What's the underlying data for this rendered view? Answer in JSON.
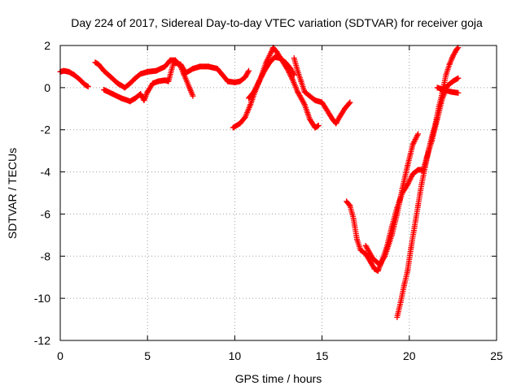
{
  "chart_data": {
    "type": "scatter",
    "title": "Day 224 of 2017, Sidereal Day-to-day VTEC variation (SDTVAR) for receiver goja",
    "xlabel": "GPS time / hours",
    "ylabel": "SDTVAR / TECUs",
    "xlim": [
      0,
      25
    ],
    "ylim": [
      -12,
      2
    ],
    "xticks": [
      0,
      5,
      10,
      15,
      20,
      25
    ],
    "yticks": [
      -12,
      -10,
      -8,
      -6,
      -4,
      -2,
      0,
      2
    ],
    "grid": true,
    "marker": "plus",
    "color": "#ff0000",
    "segments": [
      [
        [
          0,
          0.75
        ],
        [
          0.2,
          0.8
        ],
        [
          0.5,
          0.75
        ],
        [
          0.8,
          0.6
        ],
        [
          1.1,
          0.4
        ],
        [
          1.4,
          0.15
        ],
        [
          1.6,
          0.05
        ]
      ],
      [
        [
          2.0,
          1.2
        ],
        [
          2.2,
          1.1
        ],
        [
          2.5,
          0.8
        ],
        [
          2.9,
          0.5
        ],
        [
          3.3,
          0.2
        ],
        [
          3.7,
          0.0
        ],
        [
          4.0,
          0.2
        ],
        [
          4.3,
          0.45
        ],
        [
          4.6,
          0.65
        ],
        [
          5.0,
          0.75
        ],
        [
          5.5,
          0.8
        ],
        [
          6.0,
          1.0
        ],
        [
          6.3,
          1.3
        ],
        [
          6.6,
          1.3
        ],
        [
          6.9,
          1.0
        ],
        [
          7.1,
          0.6
        ],
        [
          7.4,
          0.0
        ],
        [
          7.6,
          -0.4
        ]
      ],
      [
        [
          2.5,
          -0.1
        ],
        [
          3.0,
          -0.3
        ],
        [
          3.5,
          -0.5
        ],
        [
          4.0,
          -0.65
        ],
        [
          4.3,
          -0.5
        ],
        [
          4.6,
          -0.3
        ],
        [
          4.8,
          -0.6
        ],
        [
          5.0,
          -0.2
        ],
        [
          5.3,
          0.2
        ],
        [
          5.6,
          0.3
        ],
        [
          6.0,
          0.35
        ],
        [
          6.2,
          0.3
        ],
        [
          6.5,
          1.2
        ],
        [
          6.9,
          1.1
        ],
        [
          7.2,
          0.7
        ],
        [
          7.6,
          0.9
        ],
        [
          8.0,
          1.0
        ],
        [
          8.5,
          1.0
        ],
        [
          9.0,
          0.9
        ],
        [
          9.3,
          0.6
        ],
        [
          9.6,
          0.3
        ],
        [
          10.0,
          0.25
        ],
        [
          10.3,
          0.3
        ],
        [
          10.6,
          0.5
        ],
        [
          10.8,
          0.8
        ]
      ],
      [
        [
          9.9,
          -1.9
        ],
        [
          10.3,
          -1.7
        ],
        [
          10.6,
          -1.4
        ],
        [
          10.9,
          -0.8
        ],
        [
          11.2,
          -0.1
        ],
        [
          11.5,
          0.5
        ],
        [
          11.8,
          1.2
        ],
        [
          12.1,
          1.7
        ],
        [
          12.2,
          1.9
        ],
        [
          12.4,
          1.7
        ],
        [
          12.7,
          1.3
        ],
        [
          13.0,
          0.9
        ],
        [
          13.3,
          0.4
        ],
        [
          13.6,
          -0.2
        ],
        [
          14.0,
          -0.8
        ],
        [
          14.3,
          -1.5
        ],
        [
          14.6,
          -1.9
        ],
        [
          14.8,
          -1.8
        ]
      ],
      [
        [
          10.8,
          -0.5
        ],
        [
          11.1,
          -0.2
        ],
        [
          11.4,
          0.3
        ],
        [
          11.7,
          0.8
        ],
        [
          12.0,
          1.2
        ],
        [
          12.3,
          1.45
        ],
        [
          12.6,
          1.4
        ],
        [
          12.9,
          1.2
        ],
        [
          13.2,
          0.9
        ],
        [
          13.4,
          0.6
        ]
      ],
      [
        [
          13.4,
          1.4
        ],
        [
          13.6,
          0.8
        ],
        [
          13.8,
          0.3
        ],
        [
          14.0,
          -0.2
        ],
        [
          14.3,
          -0.4
        ],
        [
          14.6,
          -0.6
        ],
        [
          15.0,
          -0.7
        ],
        [
          15.3,
          -1.1
        ],
        [
          15.6,
          -1.5
        ],
        [
          15.8,
          -1.7
        ],
        [
          16.0,
          -1.4
        ],
        [
          16.3,
          -1.0
        ],
        [
          16.6,
          -0.7
        ]
      ],
      [
        [
          16.4,
          -5.4
        ],
        [
          16.6,
          -5.6
        ],
        [
          16.8,
          -6.2
        ],
        [
          17.0,
          -7.2
        ],
        [
          17.2,
          -7.7
        ],
        [
          17.5,
          -7.9
        ],
        [
          17.8,
          -8.3
        ],
        [
          18.0,
          -8.6
        ],
        [
          18.2,
          -8.7
        ],
        [
          18.4,
          -8.3
        ],
        [
          18.7,
          -7.6
        ],
        [
          19.0,
          -6.6
        ],
        [
          19.3,
          -5.7
        ],
        [
          19.6,
          -5.0
        ],
        [
          19.9,
          -4.6
        ],
        [
          20.2,
          -4.1
        ],
        [
          20.5,
          -3.9
        ],
        [
          20.8,
          -3.9
        ],
        [
          21.0,
          -3.3
        ],
        [
          21.3,
          -2.5
        ],
        [
          21.6,
          -1.5
        ],
        [
          21.9,
          -0.5
        ],
        [
          22.2,
          0.1
        ],
        [
          22.5,
          0.3
        ],
        [
          22.8,
          0.45
        ]
      ],
      [
        [
          17.5,
          -7.5
        ],
        [
          17.9,
          -8.1
        ],
        [
          18.3,
          -8.4
        ],
        [
          18.6,
          -8.0
        ],
        [
          19.0,
          -7.0
        ],
        [
          19.3,
          -6.0
        ],
        [
          19.6,
          -4.8
        ],
        [
          19.9,
          -3.7
        ],
        [
          20.2,
          -2.7
        ],
        [
          20.5,
          -2.2
        ]
      ],
      [
        [
          19.3,
          -10.9
        ],
        [
          19.5,
          -10.2
        ],
        [
          19.7,
          -9.4
        ],
        [
          19.9,
          -8.7
        ],
        [
          20.1,
          -7.6
        ],
        [
          20.3,
          -6.6
        ],
        [
          20.5,
          -5.6
        ],
        [
          20.7,
          -4.6
        ],
        [
          20.9,
          -3.8
        ],
        [
          21.1,
          -3.0
        ],
        [
          21.3,
          -2.3
        ],
        [
          21.5,
          -1.7
        ],
        [
          21.7,
          -0.9
        ],
        [
          21.9,
          -0.2
        ],
        [
          22.1,
          0.6
        ],
        [
          22.3,
          1.1
        ],
        [
          22.5,
          1.5
        ],
        [
          22.7,
          1.8
        ],
        [
          22.8,
          1.9
        ]
      ],
      [
        [
          21.6,
          0.0
        ],
        [
          22.0,
          -0.1
        ],
        [
          22.4,
          -0.2
        ],
        [
          22.8,
          -0.25
        ]
      ]
    ]
  }
}
